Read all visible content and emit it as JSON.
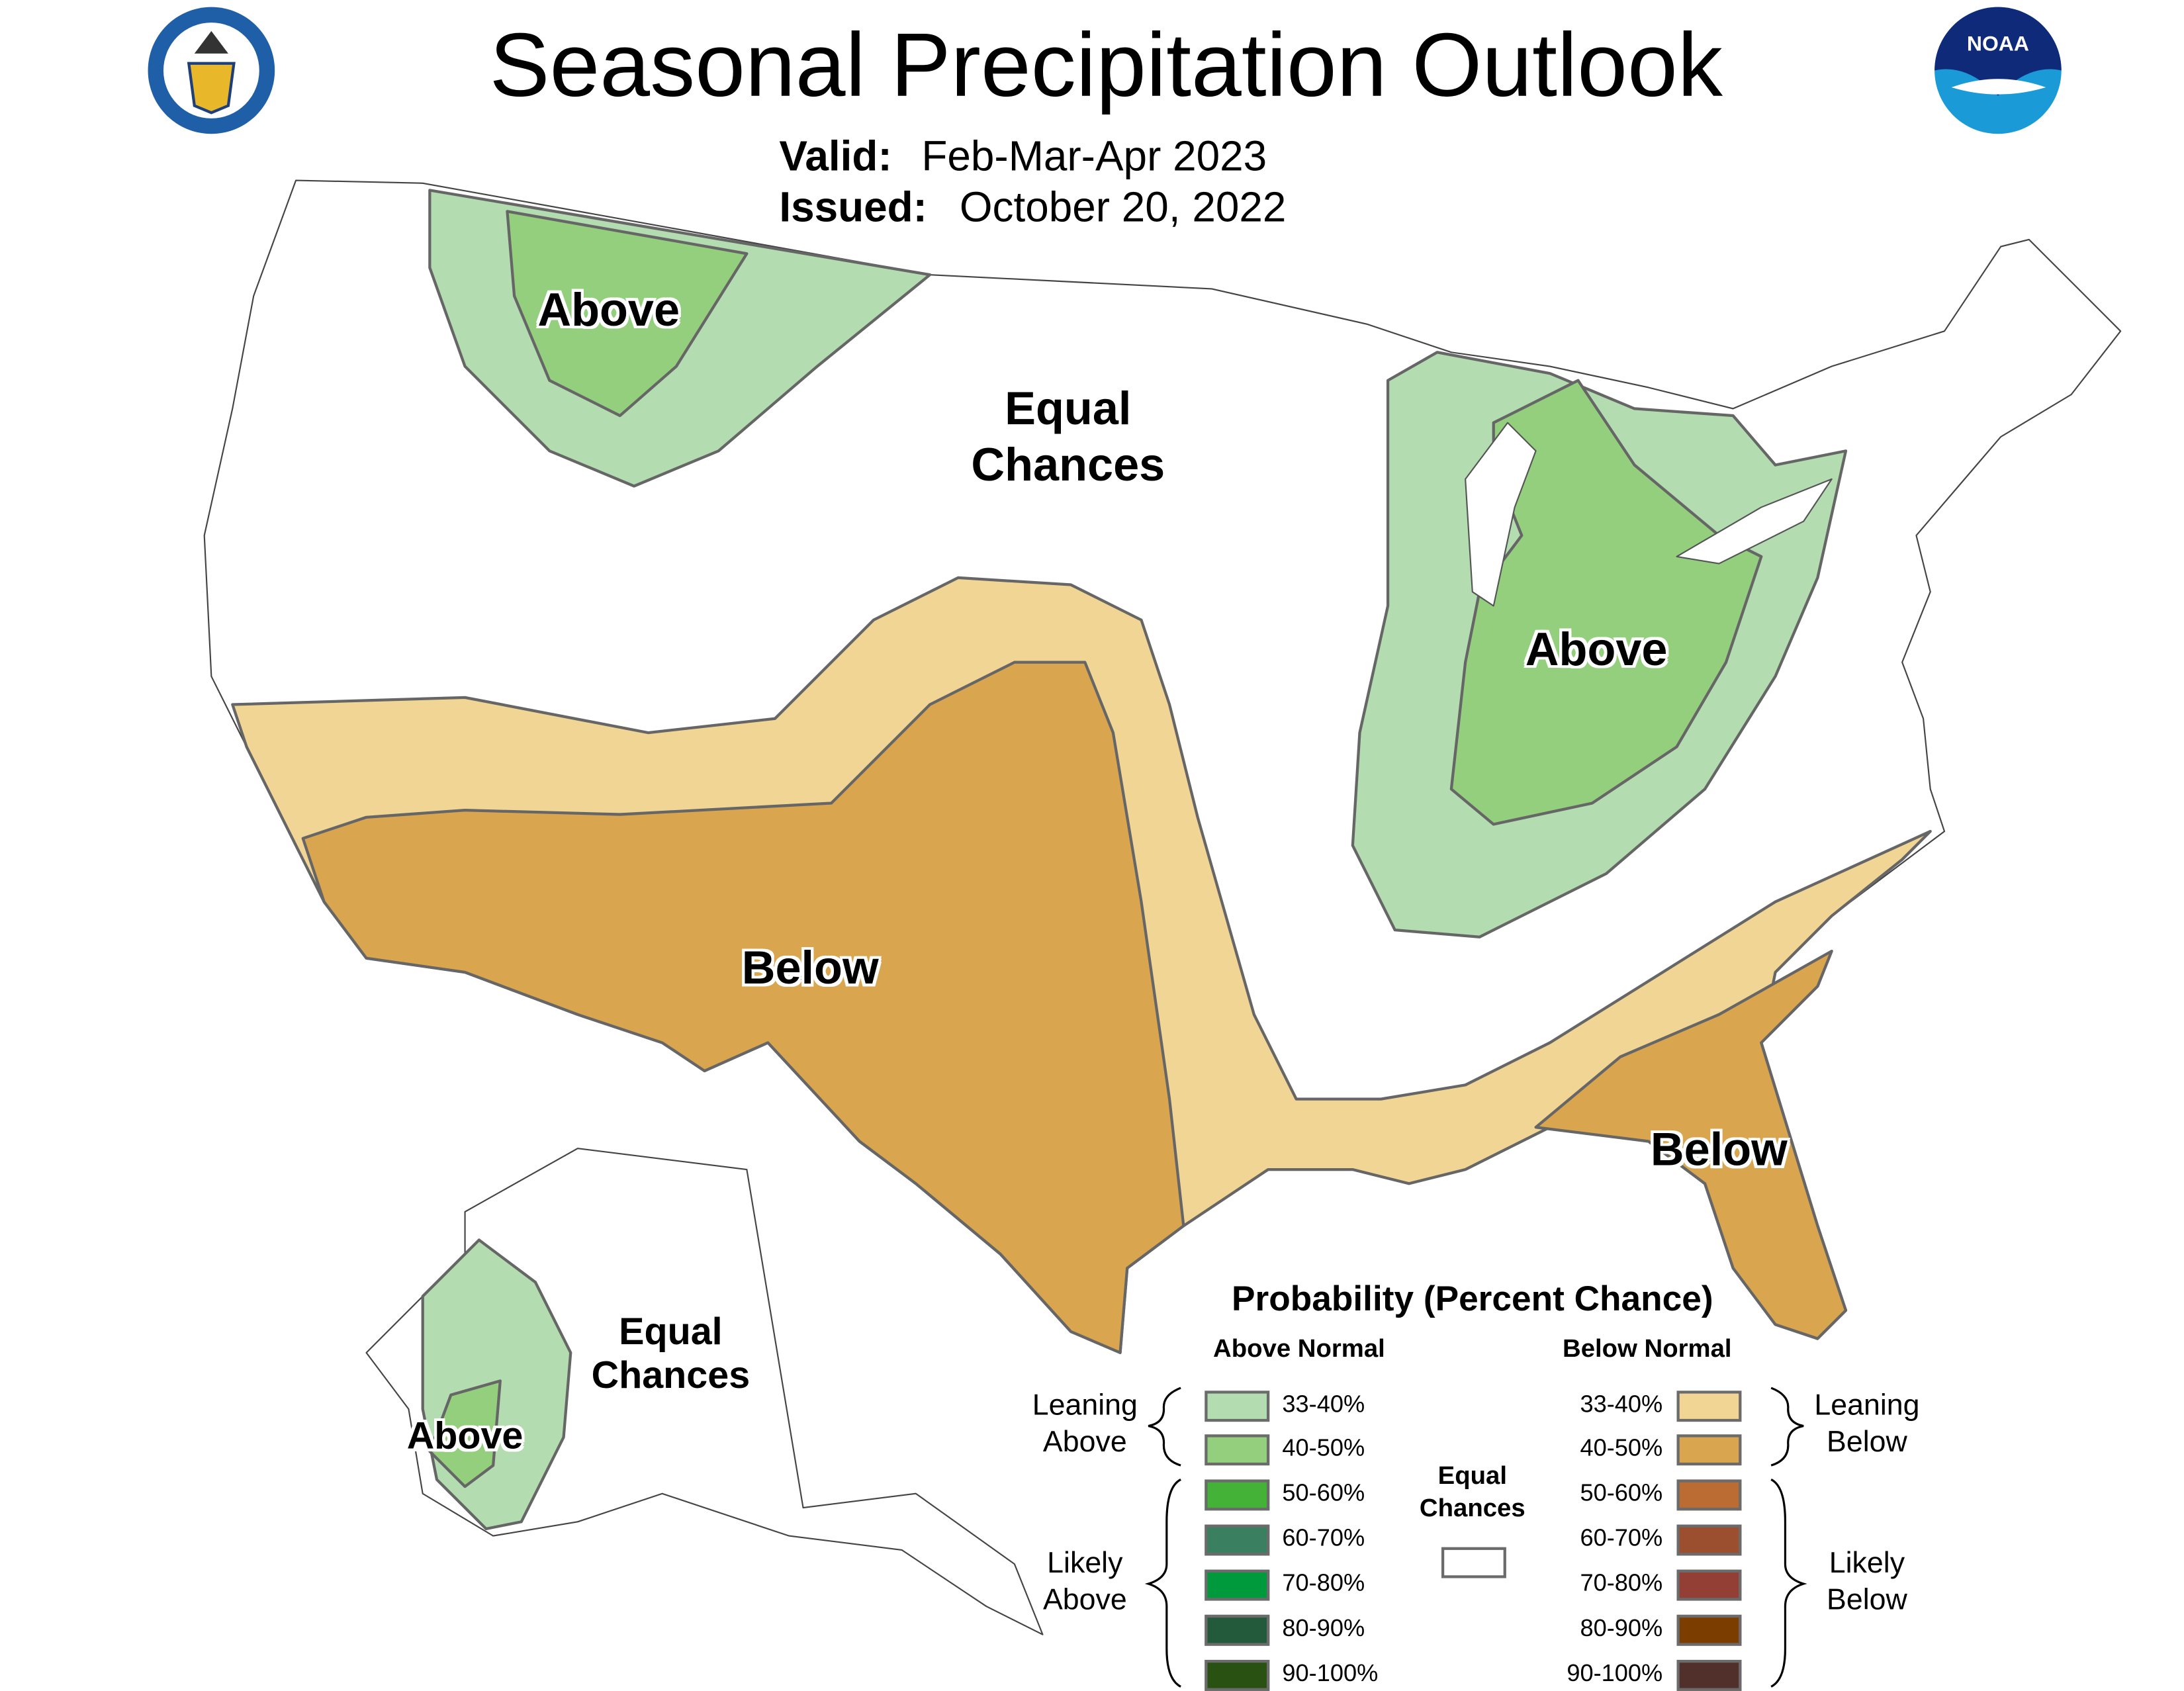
{
  "header": {
    "title": "Seasonal Precipitation Outlook",
    "valid_label": "Valid:",
    "valid_value": "Feb-Mar-Apr 2023",
    "issued_label": "Issued:",
    "issued_value": "October 20, 2022"
  },
  "logos": {
    "left": "Department of Commerce - United States of America",
    "right": "NOAA"
  },
  "map_labels": {
    "nw_above": "Above",
    "central_equal_1": "Equal",
    "central_equal_2": "Chances",
    "midwest_above": "Above",
    "sw_below": "Below",
    "se_below": "Below",
    "alaska_equal_1": "Equal",
    "alaska_equal_2": "Chances",
    "alaska_above": "Above"
  },
  "legend": {
    "title": "Probability (Percent Chance)",
    "above_header": "Above Normal",
    "below_header": "Below Normal",
    "leaning_above": [
      "Leaning",
      "Above"
    ],
    "likely_above": [
      "Likely",
      "Above"
    ],
    "leaning_below": [
      "Leaning",
      "Below"
    ],
    "likely_below": [
      "Likely",
      "Below"
    ],
    "equal": [
      "Equal",
      "Chances"
    ],
    "equal_color": "#ffffff",
    "above": [
      {
        "range": "33-40%",
        "color": "#b3dcb0"
      },
      {
        "range": "40-50%",
        "color": "#94cf7e"
      },
      {
        "range": "50-60%",
        "color": "#43b237"
      },
      {
        "range": "60-70%",
        "color": "#3a7f60"
      },
      {
        "range": "70-80%",
        "color": "#009a3c"
      },
      {
        "range": "80-90%",
        "color": "#235a3c"
      },
      {
        "range": "90-100%",
        "color": "#285112"
      }
    ],
    "below": [
      {
        "range": "33-40%",
        "color": "#f1d595"
      },
      {
        "range": "40-50%",
        "color": "#d9a54e"
      },
      {
        "range": "50-60%",
        "color": "#bb6c32"
      },
      {
        "range": "60-70%",
        "color": "#9c4f2e"
      },
      {
        "range": "70-80%",
        "color": "#933f36"
      },
      {
        "range": "80-90%",
        "color": "#7b3d00"
      },
      {
        "range": "90-100%",
        "color": "#51302c"
      }
    ]
  }
}
